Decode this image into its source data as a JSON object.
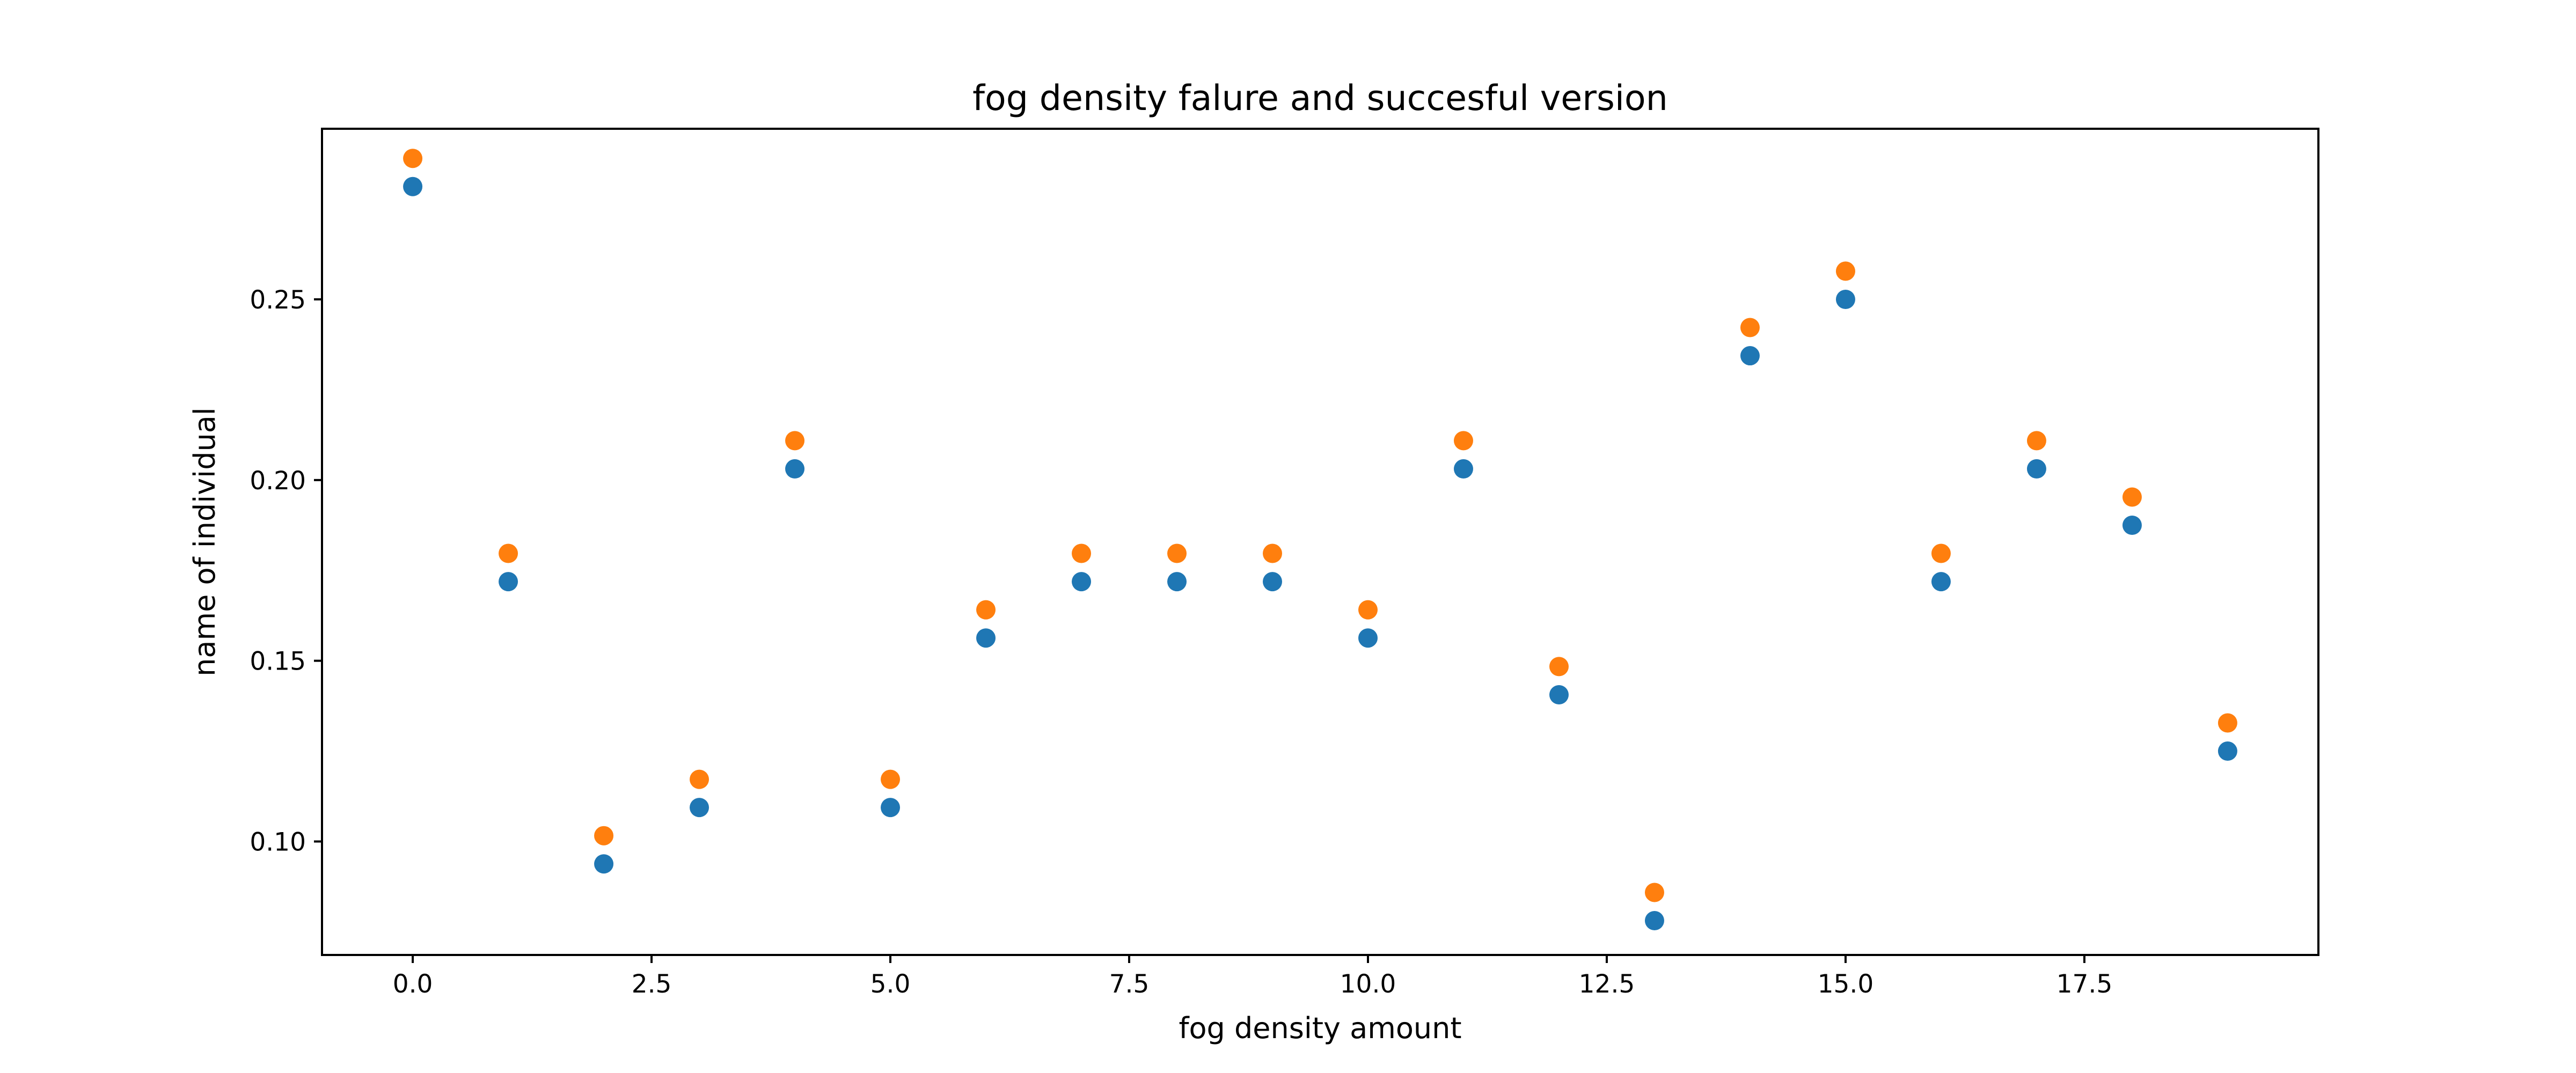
{
  "chart_data": {
    "type": "scatter",
    "title": "fog density falure and succesful version",
    "xlabel": "fog density amount",
    "ylabel": "name of individual",
    "xlim": [
      -0.95,
      19.95
    ],
    "ylim": [
      0.0686,
      0.2972
    ],
    "x_ticks": [
      0.0,
      2.5,
      5.0,
      7.5,
      10.0,
      12.5,
      15.0,
      17.5
    ],
    "x_tick_labels": [
      "0.0",
      "2.5",
      "5.0",
      "7.5",
      "10.0",
      "12.5",
      "15.0",
      "17.5"
    ],
    "y_ticks": [
      0.1,
      0.15,
      0.2,
      0.25
    ],
    "y_tick_labels": [
      "0.10",
      "0.15",
      "0.20",
      "0.25"
    ],
    "grid": false,
    "legend": false,
    "x": [
      0,
      1,
      2,
      3,
      4,
      5,
      6,
      7,
      8,
      9,
      10,
      11,
      12,
      13,
      14,
      15,
      16,
      17,
      18,
      19
    ],
    "series": [
      {
        "color": "#1f77b4",
        "values": [
          0.2812,
          0.1719,
          0.0938,
          0.1094,
          0.2031,
          0.1094,
          0.1563,
          0.1719,
          0.1719,
          0.1719,
          0.1563,
          0.2031,
          0.1406,
          0.0781,
          0.2344,
          0.25,
          0.1719,
          0.2031,
          0.1875,
          0.125
        ]
      },
      {
        "color": "#ff7f0e",
        "values": [
          0.289,
          0.1797,
          0.1016,
          0.1172,
          0.2109,
          0.1172,
          0.1641,
          0.1797,
          0.1797,
          0.1797,
          0.1641,
          0.2109,
          0.1484,
          0.0859,
          0.2422,
          0.2578,
          0.1797,
          0.2109,
          0.1953,
          0.1328
        ]
      }
    ]
  }
}
